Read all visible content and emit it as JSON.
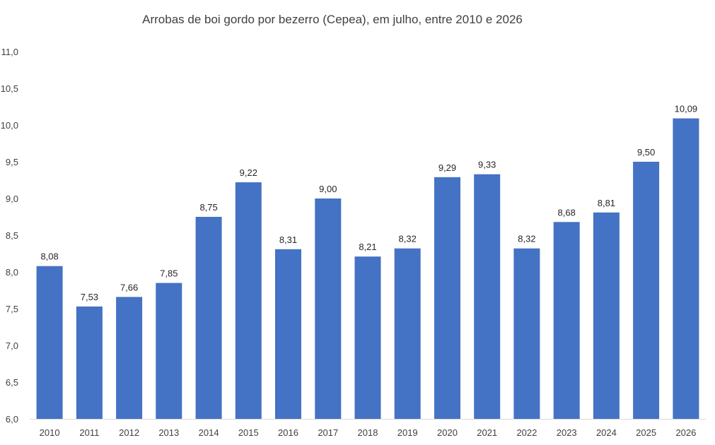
{
  "chart_data": {
    "type": "bar",
    "title": "Arrobas de boi gordo por bezerro (Cepea), em julho, entre 2010 e 2026",
    "xlabel": "",
    "ylabel": "",
    "categories": [
      "2010",
      "2011",
      "2012",
      "2013",
      "2014",
      "2015",
      "2016",
      "2017",
      "2018",
      "2019",
      "2020",
      "2021",
      "2022",
      "2023",
      "2024",
      "2025",
      "2026"
    ],
    "values": [
      8.08,
      7.53,
      7.66,
      7.85,
      8.75,
      9.22,
      8.31,
      9.0,
      8.21,
      8.32,
      9.29,
      9.33,
      8.32,
      8.68,
      8.81,
      9.5,
      10.09
    ],
    "value_labels": [
      "8,08",
      "7,53",
      "7,66",
      "7,85",
      "8,75",
      "9,22",
      "8,31",
      "9,00",
      "8,21",
      "8,32",
      "9,29",
      "9,33",
      "8,32",
      "8,68",
      "8,81",
      "9,50",
      "10,09"
    ],
    "ylim": [
      6.0,
      11.0
    ],
    "y_ticks": [
      6.0,
      6.5,
      7.0,
      7.5,
      8.0,
      8.5,
      9.0,
      9.5,
      10.0,
      10.5,
      11.0
    ],
    "y_tick_labels": [
      "6,0",
      "6,5",
      "7,0",
      "7,5",
      "8,0",
      "8,5",
      "9,0",
      "9,5",
      "10,0",
      "10,5",
      "11,0"
    ],
    "grid": false,
    "legend": "none",
    "bar_color": "#4472C4"
  }
}
